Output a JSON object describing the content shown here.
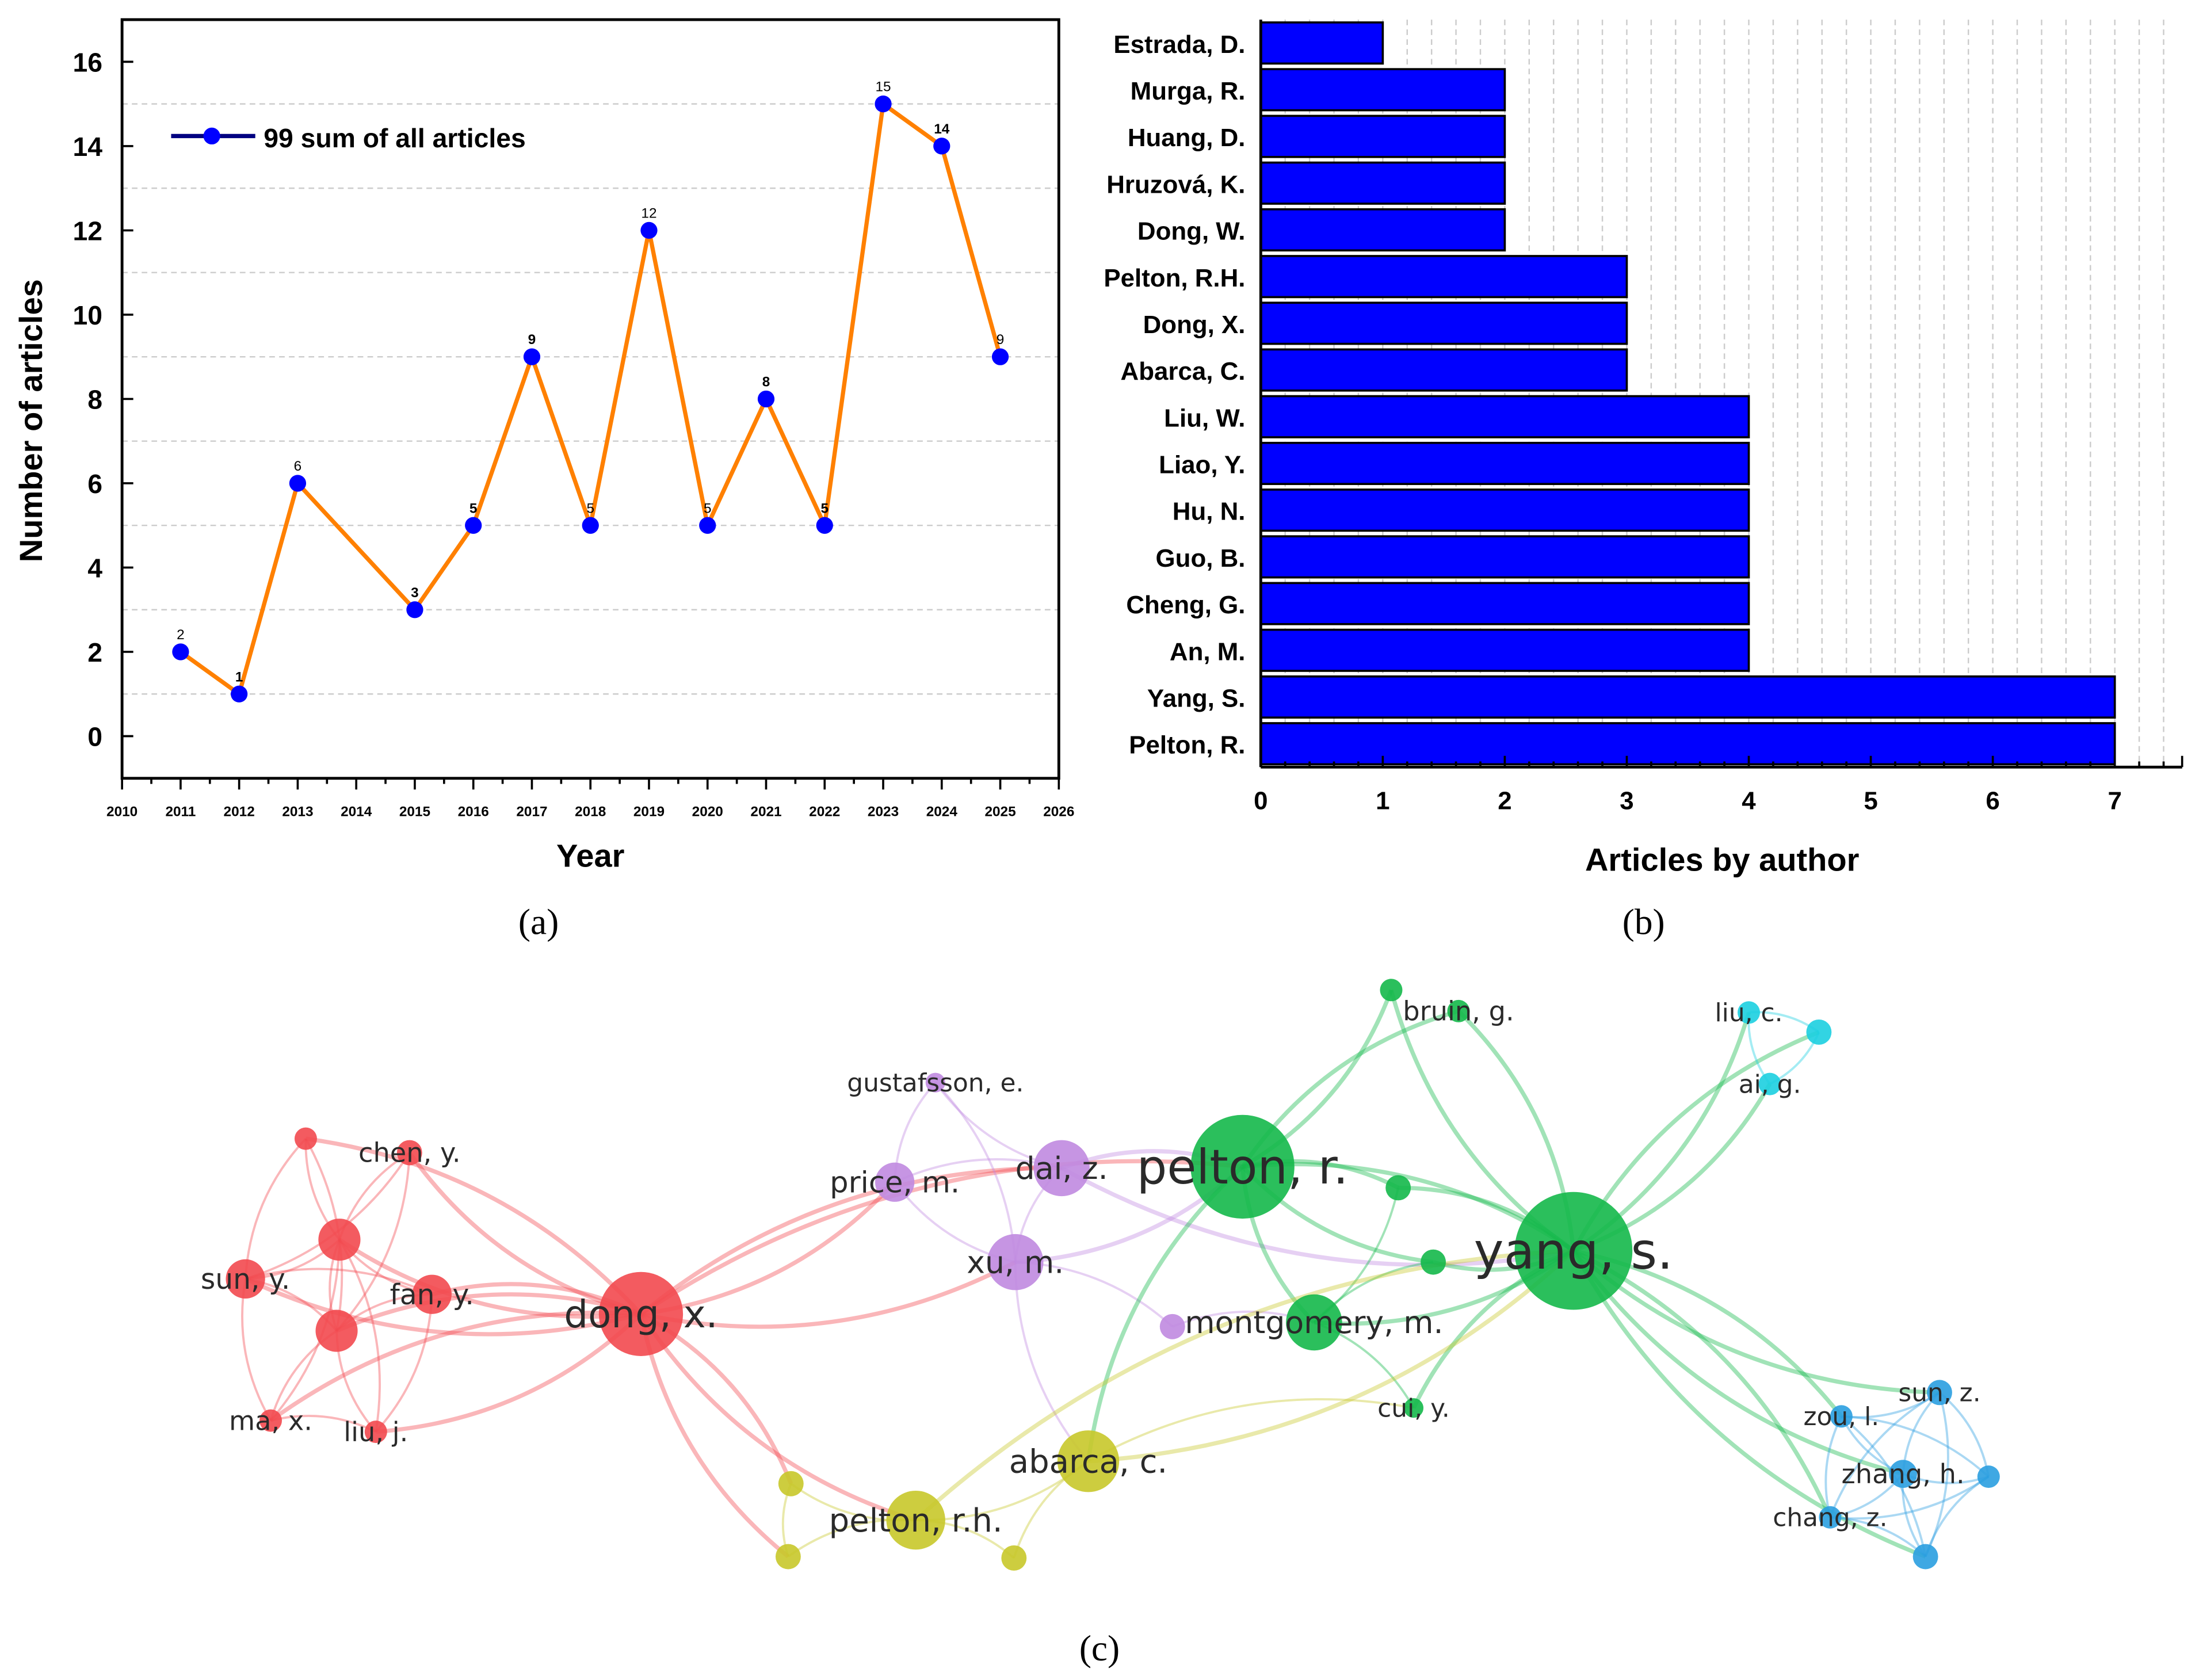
{
  "chart_data": [
    {
      "type": "line",
      "panel_caption": "(a)",
      "xlabel": "Year",
      "ylabel": "Number of articles",
      "xlim": [
        2010,
        2026
      ],
      "ylim": [
        -1,
        17
      ],
      "xticks": [
        "2010",
        "2011",
        "2012",
        "2013",
        "2014",
        "2015",
        "2016",
        "2017",
        "2018",
        "2019",
        "2020",
        "2021",
        "2022",
        "2023",
        "2024",
        "2025",
        "2026"
      ],
      "yticks": [
        "0",
        "2",
        "4",
        "6",
        "8",
        "10",
        "12",
        "14",
        "16"
      ],
      "grid": "horizontal dashed at odd values",
      "legend": {
        "label": "99 sum of all articles",
        "placement": "top-left"
      },
      "series": [
        {
          "name": "99 sum of all articles",
          "x": [
            2011,
            2012,
            2013,
            2015,
            2016,
            2017,
            2018,
            2019,
            2020,
            2021,
            2022,
            2023,
            2024,
            2025
          ],
          "values": [
            2,
            1,
            6,
            3,
            5,
            9,
            5,
            12,
            5,
            8,
            5,
            15,
            14,
            9
          ],
          "labels": [
            "2",
            "1",
            "6",
            "3",
            "5",
            "9",
            "5",
            "12",
            "5",
            "8",
            "5",
            "15",
            "14",
            "9"
          ],
          "label_bold": [
            false,
            true,
            false,
            true,
            true,
            true,
            false,
            false,
            false,
            true,
            true,
            false,
            true,
            false
          ]
        }
      ],
      "colors": {
        "line": "#ff8000",
        "marker": "#0000ff"
      }
    },
    {
      "type": "bar",
      "orientation": "horizontal",
      "panel_caption": "(b)",
      "xlabel": "Articles by author",
      "xlim": [
        0,
        7.55
      ],
      "xticks": [
        "0",
        "1",
        "2",
        "3",
        "4",
        "5",
        "6",
        "7"
      ],
      "categories": [
        "Estrada, D.",
        "Murga, R.",
        "Huang, D.",
        "Hruzová, K.",
        "Dong, W.",
        "Pelton, R.H.",
        "Dong, X.",
        "Abarca, C.",
        "Liu, W.",
        "Liao, Y.",
        "Hu, N.",
        "Guo, B.",
        "Cheng, G.",
        "An, M.",
        "Yang, S.",
        "Pelton, R."
      ],
      "values": [
        1,
        2,
        2,
        2,
        2,
        3,
        3,
        3,
        4,
        4,
        4,
        4,
        4,
        4,
        7,
        7
      ],
      "grid": "vertical dashed",
      "colors": {
        "bar": "#0000ff"
      }
    },
    {
      "type": "network",
      "panel_caption": "(c)",
      "clusters": {
        "red": "#f2494f",
        "purple": "#c08ae0",
        "green": "#14b84a",
        "yellow": "#c8c82a",
        "cyan": "#1ccfe0",
        "blue": "#2a9ee0"
      },
      "nodes": [
        {
          "label": "dong, x.",
          "cluster": "red"
        },
        {
          "label": "sun, y.",
          "cluster": "red"
        },
        {
          "label": "fan, y.",
          "cluster": "red"
        },
        {
          "label": "chen, y.",
          "cluster": "red"
        },
        {
          "label": "ma, x.",
          "cluster": "red"
        },
        {
          "label": "liu, j.",
          "cluster": "red"
        },
        {
          "label": "",
          "cluster": "red"
        },
        {
          "label": "",
          "cluster": "red"
        },
        {
          "label": "",
          "cluster": "red"
        },
        {
          "label": "price, m.",
          "cluster": "purple"
        },
        {
          "label": "dai, z.",
          "cluster": "purple"
        },
        {
          "label": "xu, m.",
          "cluster": "purple"
        },
        {
          "label": "gustafsson, e.",
          "cluster": "purple"
        },
        {
          "label": "",
          "cluster": "purple"
        },
        {
          "label": "pelton, r.",
          "cluster": "green"
        },
        {
          "label": "yang, s.",
          "cluster": "green"
        },
        {
          "label": "montgomery, m.",
          "cluster": "green"
        },
        {
          "label": "bruin, g.",
          "cluster": "green"
        },
        {
          "label": "cui, y.",
          "cluster": "green"
        },
        {
          "label": "",
          "cluster": "green"
        },
        {
          "label": "",
          "cluster": "green"
        },
        {
          "label": "",
          "cluster": "green"
        },
        {
          "label": "abarca, c.",
          "cluster": "yellow"
        },
        {
          "label": "pelton, r.h.",
          "cluster": "yellow"
        },
        {
          "label": "",
          "cluster": "yellow"
        },
        {
          "label": "",
          "cluster": "yellow"
        },
        {
          "label": "",
          "cluster": "yellow"
        },
        {
          "label": "liu, c.",
          "cluster": "cyan"
        },
        {
          "label": "",
          "cluster": "cyan"
        },
        {
          "label": "ai, g.",
          "cluster": "cyan"
        },
        {
          "label": "sun, z.",
          "cluster": "blue"
        },
        {
          "label": "zou, l.",
          "cluster": "blue"
        },
        {
          "label": "zhang, h.",
          "cluster": "blue"
        },
        {
          "label": "",
          "cluster": "blue"
        },
        {
          "label": "chang, z.",
          "cluster": "blue"
        },
        {
          "label": "",
          "cluster": "blue"
        }
      ]
    }
  ]
}
